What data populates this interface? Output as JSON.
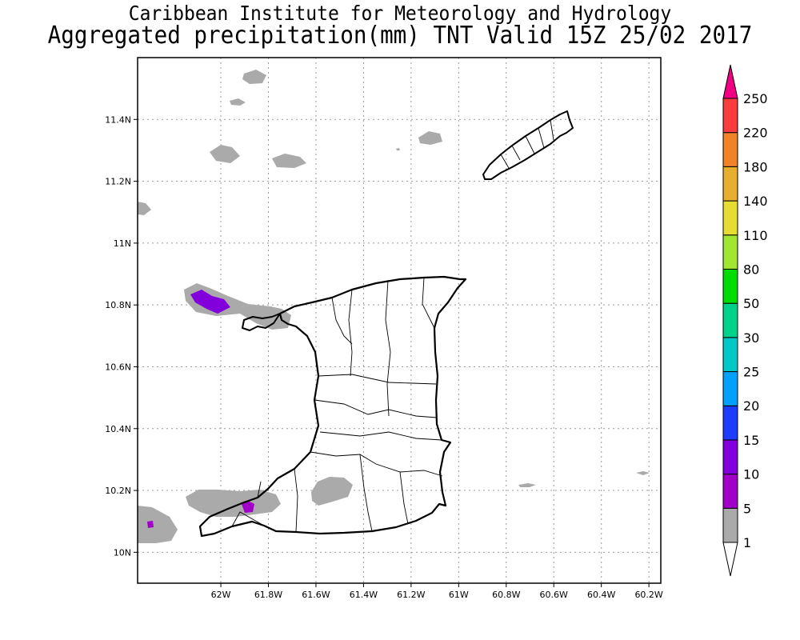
{
  "titles": {
    "line1": "Caribbean Institute for Meteorology and Hydrology",
    "line2": "Aggregated precipitation(mm) TNT Valid 15Z 25/02 2017"
  },
  "map": {
    "lon_range": [
      -62.35,
      -60.15
    ],
    "lat_range": [
      9.9,
      11.6
    ],
    "x_ticks": [
      {
        "value": -62.0,
        "label": "62W"
      },
      {
        "value": -61.8,
        "label": "61.8W"
      },
      {
        "value": -61.6,
        "label": "61.6W"
      },
      {
        "value": -61.4,
        "label": "61.4W"
      },
      {
        "value": -61.2,
        "label": "61.2W"
      },
      {
        "value": -61.0,
        "label": "61W"
      },
      {
        "value": -60.8,
        "label": "60.8W"
      },
      {
        "value": -60.6,
        "label": "60.6W"
      },
      {
        "value": -60.4,
        "label": "60.4W"
      },
      {
        "value": -60.2,
        "label": "60.2W"
      }
    ],
    "y_ticks": [
      {
        "value": 10.0,
        "label": "10N"
      },
      {
        "value": 10.2,
        "label": "10.2N"
      },
      {
        "value": 10.4,
        "label": "10.4N"
      },
      {
        "value": 10.6,
        "label": "10.6N"
      },
      {
        "value": 10.8,
        "label": "10.8N"
      },
      {
        "value": 11.0,
        "label": "11N"
      },
      {
        "value": 11.2,
        "label": "11.2N"
      },
      {
        "value": 11.4,
        "label": "11.4N"
      }
    ],
    "grid": true
  },
  "colorbar": {
    "levels": [
      "1",
      "5",
      "10",
      "15",
      "20",
      "25",
      "30",
      "50",
      "80",
      "110",
      "140",
      "180",
      "220",
      "250"
    ],
    "colors": [
      "#aaaaaa",
      "#a000c8",
      "#8200dc",
      "#1e3cff",
      "#00a0ff",
      "#00c8c8",
      "#00d28c",
      "#00dc00",
      "#a0e632",
      "#e6dc32",
      "#e6af2d",
      "#f08228",
      "#fa3c3c",
      "#f00082"
    ],
    "below_color": "#ffffff"
  },
  "legend_colors": {
    "rain_1_5": "#aaaaaa",
    "rain_5_10": "#a000c8",
    "rain_10_15": "#8200dc"
  }
}
